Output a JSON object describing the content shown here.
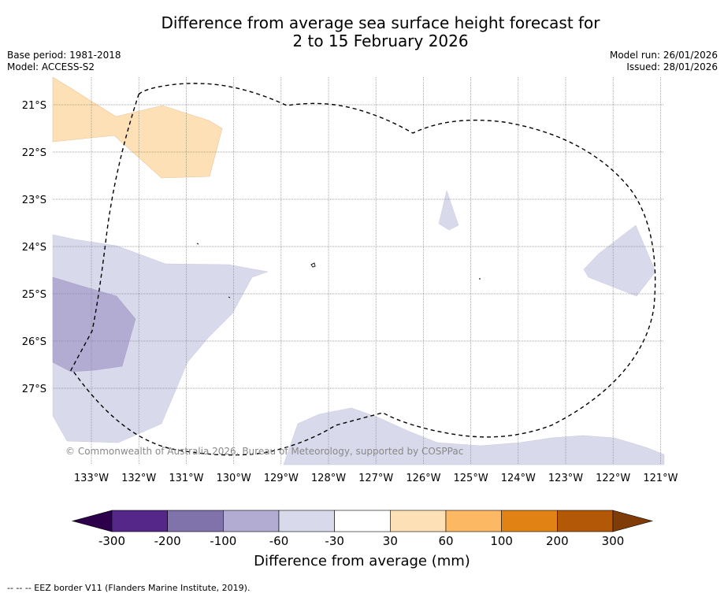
{
  "title": {
    "line1": "Difference from average sea surface height forecast for",
    "line2": "2 to 15 February 2026"
  },
  "meta": {
    "base_period": "Base period: 1981-2018",
    "model": "Model: ACCESS-S2",
    "model_run": "Model run: 26/01/2026",
    "issued": "Issued: 28/01/2026"
  },
  "map": {
    "latitudes": [
      "21°S",
      "22°S",
      "23°S",
      "24°S",
      "25°S",
      "26°S",
      "27°S"
    ],
    "longitudes": [
      "133°W",
      "132°W",
      "131°W",
      "130°W",
      "129°W",
      "128°W",
      "127°W",
      "126°W",
      "125°W",
      "124°W",
      "123°W",
      "122°W",
      "121°W"
    ],
    "copyright": "© Commonwealth of Australia 2026, Bureau of Meteorology, supported by COSPPac",
    "colors": {
      "orange_light": "#fee0b6",
      "purple_light": "#d8daeb",
      "purple_mid": "#b2abd2",
      "coast": "#222222",
      "eez": "#000000",
      "grid": "#888888"
    }
  },
  "colorbar": {
    "title": "Difference from average (mm)",
    "ticks": [
      "-300",
      "-200",
      "-100",
      "-60",
      "-30",
      "30",
      "60",
      "100",
      "200",
      "300"
    ],
    "colors": [
      "#2d004b",
      "#542788",
      "#8073ac",
      "#b2abd2",
      "#d8daeb",
      "#ffffff",
      "#fee0b6",
      "#fdb863",
      "#e08214",
      "#b35806",
      "#7f3b08"
    ]
  },
  "footer": {
    "eez_note": "--  --  -- EEZ border V11 (Flanders Marine Institute, 2019)."
  }
}
